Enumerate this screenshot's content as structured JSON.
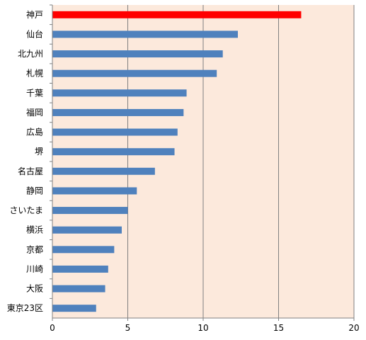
{
  "chart_data": {
    "type": "bar",
    "orientation": "horizontal",
    "categories": [
      "神戸",
      "仙台",
      "北九州",
      "札幌",
      "千葉",
      "福岡",
      "広島",
      "堺",
      "名古屋",
      "静岡",
      "さいたま",
      "横浜",
      "京都",
      "川崎",
      "大阪",
      "東京23区"
    ],
    "values": [
      16.5,
      12.3,
      11.3,
      10.9,
      8.9,
      8.7,
      8.3,
      8.1,
      6.8,
      5.6,
      5.0,
      4.6,
      4.1,
      3.7,
      3.5,
      2.9
    ],
    "highlight_index": 0,
    "xlim": [
      0,
      20
    ],
    "xticks": [
      "0",
      "5",
      "10",
      "15",
      "20"
    ],
    "title": "",
    "xlabel": "",
    "ylabel": "",
    "grid": "vertical",
    "legend": "none",
    "colors": {
      "plot_background": "#fce9dc",
      "bar": "#4f81bd",
      "highlight_bar": "#ff0000",
      "gridline": "#808080",
      "axis": "#808080"
    }
  }
}
